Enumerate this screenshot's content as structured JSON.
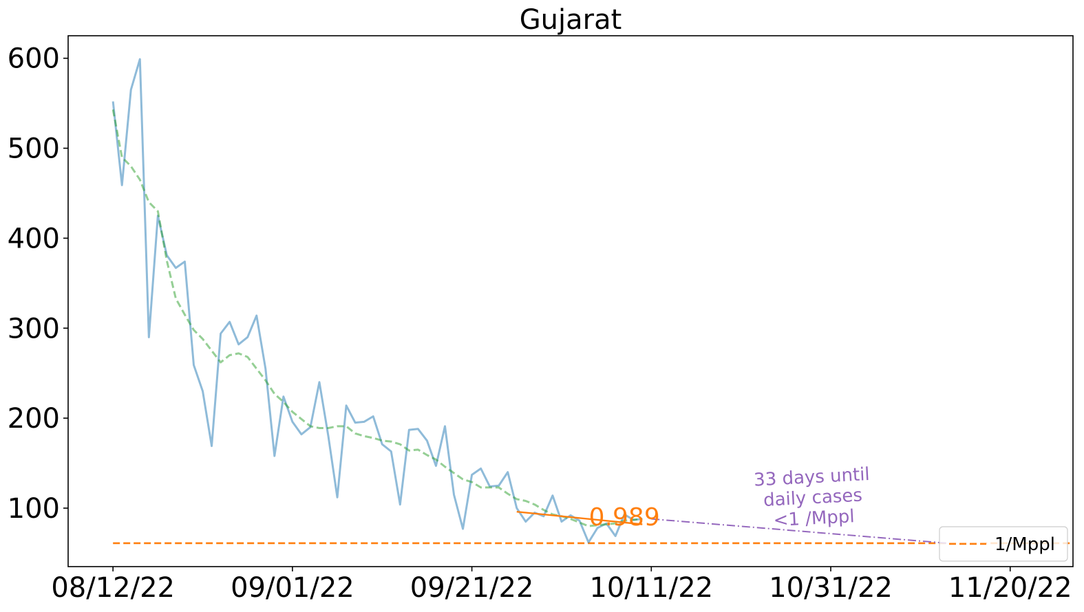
{
  "chart_data": {
    "type": "line",
    "title": "Gujarat",
    "xlabel": "",
    "ylabel": "",
    "x_tick_labels": [
      "08/12/22",
      "09/01/22",
      "09/21/22",
      "10/11/22",
      "10/31/22",
      "11/20/22"
    ],
    "y_ticks": [
      100,
      200,
      300,
      400,
      500,
      600
    ],
    "xlim": [
      "2022-08-07",
      "2022-11-27"
    ],
    "ylim": [
      35,
      625
    ],
    "grid": false,
    "legend": {
      "position": "bottom-right",
      "entries": [
        "1/Mppl"
      ]
    },
    "colors": {
      "daily": "#1f77b4",
      "smooth": "#2ca02c",
      "fit": "#ff7f0e",
      "threshold": "#ff7f0e",
      "projection": "#9467bd"
    },
    "series": [
      {
        "role": "daily",
        "start_date": "2022-08-12",
        "values": [
          552,
          459,
          565,
          599,
          290,
          425,
          381,
          367,
          374,
          259,
          230,
          169,
          294,
          307,
          282,
          290,
          314,
          255,
          158,
          224,
          196,
          182,
          190,
          240,
          180,
          112,
          214,
          195,
          196,
          202,
          171,
          163,
          104,
          187,
          188,
          175,
          147,
          191,
          115,
          77,
          137,
          144,
          124,
          125,
          140,
          100,
          85,
          95,
          91,
          114,
          85,
          92,
          86,
          62,
          78,
          83,
          69,
          93,
          87,
          88
        ]
      },
      {
        "role": "smooth",
        "start_date": "2022-08-12",
        "values": [
          543,
          490,
          480,
          465,
          440,
          430,
          375,
          333,
          315,
          298,
          288,
          275,
          262,
          270,
          272,
          268,
          255,
          242,
          227,
          218,
          207,
          199,
          191,
          189,
          189,
          191,
          191,
          183,
          180,
          178,
          175,
          174,
          171,
          164,
          165,
          159,
          154,
          146,
          139,
          132,
          129,
          123,
          123,
          123,
          116,
          110,
          108,
          104,
          98,
          93,
          91,
          88,
          84,
          80,
          81,
          82,
          83,
          86,
          87,
          88
        ]
      },
      {
        "role": "fit",
        "x": [
          "2022-09-26",
          "2022-10-10"
        ],
        "y": [
          96,
          82
        ]
      },
      {
        "role": "projection",
        "x": [
          "2022-10-11",
          "2022-11-13"
        ],
        "y": [
          88,
          61
        ]
      },
      {
        "role": "threshold",
        "name": "1/Mppl",
        "y": 61,
        "x": [
          "2022-08-12",
          "2022-11-27"
        ]
      }
    ],
    "annotations": [
      {
        "text": "0.989",
        "x": "2022-10-08",
        "y": 90,
        "color": "#ff7f0e"
      },
      {
        "text": "33 days until\ndaily cases\n<1 /Mppl",
        "x": "2022-10-29",
        "y": 112,
        "color": "#9467bd",
        "rotation": -3
      }
    ]
  }
}
